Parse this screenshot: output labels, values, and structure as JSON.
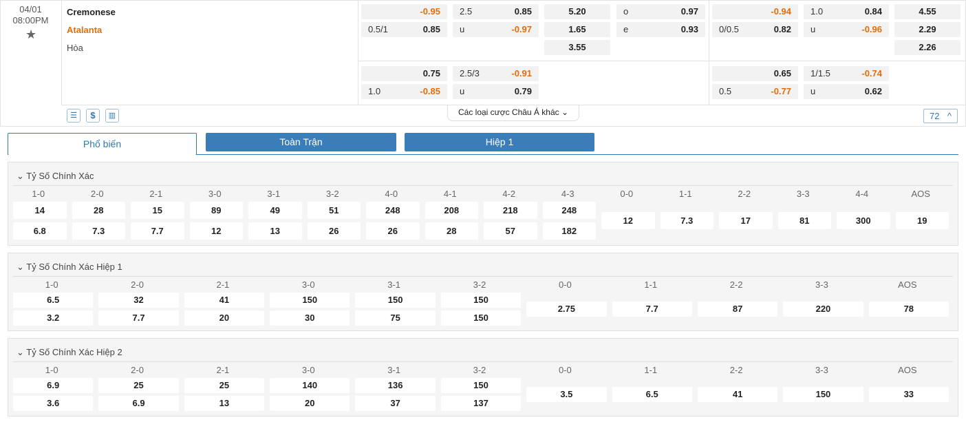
{
  "match": {
    "date": "04/01",
    "time": "08:00PM",
    "home": "Cremonese",
    "away": "Atalanta",
    "draw": "Hòa"
  },
  "odds": {
    "main": [
      [
        {
          "odds": "-0.95"
        },
        {
          "line": "2.5",
          "odds": "0.85"
        },
        {
          "odds": "5.20"
        },
        {
          "line": "o",
          "odds": "0.97"
        },
        {
          "odds": "-0.94"
        },
        {
          "line": "1.0",
          "odds": "0.84"
        },
        {
          "odds": "4.55"
        }
      ],
      [
        {
          "line": "0.5/1",
          "odds": "0.85"
        },
        {
          "line": "u",
          "odds": "-0.97"
        },
        {
          "odds": "1.65"
        },
        {
          "line": "e",
          "odds": "0.93"
        },
        {
          "line": "0/0.5",
          "odds": "0.82"
        },
        {
          "line": "u",
          "odds": "-0.96"
        },
        {
          "odds": "2.29"
        }
      ],
      [
        null,
        null,
        {
          "odds": "3.55"
        },
        null,
        null,
        null,
        {
          "odds": "2.26"
        }
      ]
    ],
    "alt": [
      [
        {
          "odds": "0.75"
        },
        {
          "line": "2.5/3",
          "odds": "-0.91"
        },
        null,
        null,
        {
          "odds": "0.65"
        },
        {
          "line": "1/1.5",
          "odds": "-0.74"
        },
        null
      ],
      [
        {
          "line": "1.0",
          "odds": "-0.85"
        },
        {
          "line": "u",
          "odds": "0.79"
        },
        null,
        null,
        {
          "line": "0.5",
          "odds": "-0.77"
        },
        {
          "line": "u",
          "odds": "0.62"
        },
        null
      ]
    ]
  },
  "toolbar": {
    "more": "Các loại cược Châu Á khác",
    "count": "72"
  },
  "tabs": [
    "Phổ biến",
    "Toàn Trận",
    "Hiệp 1"
  ],
  "sections": [
    {
      "title": "Tỷ Số Chính Xác",
      "columns": [
        "1-0",
        "2-0",
        "2-1",
        "3-0",
        "3-1",
        "3-2",
        "4-0",
        "4-1",
        "4-2",
        "4-3",
        "0-0",
        "1-1",
        "2-2",
        "3-3",
        "4-4",
        "AOS"
      ],
      "home": [
        "14",
        "28",
        "15",
        "89",
        "49",
        "51",
        "248",
        "208",
        "218",
        "248"
      ],
      "away": [
        "6.8",
        "7.3",
        "7.7",
        "12",
        "13",
        "26",
        "26",
        "28",
        "57",
        "182"
      ],
      "draw": [
        "12",
        "7.3",
        "17",
        "81",
        "300",
        "19"
      ]
    },
    {
      "title": "Tỷ Số Chính Xác Hiệp 1",
      "columns": [
        "1-0",
        "2-0",
        "2-1",
        "3-0",
        "3-1",
        "3-2",
        "0-0",
        "1-1",
        "2-2",
        "3-3",
        "AOS"
      ],
      "home": [
        "6.5",
        "32",
        "41",
        "150",
        "150",
        "150"
      ],
      "away": [
        "3.2",
        "7.7",
        "20",
        "30",
        "75",
        "150"
      ],
      "draw": [
        "2.75",
        "7.7",
        "87",
        "220",
        "78"
      ]
    },
    {
      "title": "Tỷ Số Chính Xác Hiệp 2",
      "columns": [
        "1-0",
        "2-0",
        "2-1",
        "3-0",
        "3-1",
        "3-2",
        "0-0",
        "1-1",
        "2-2",
        "3-3",
        "AOS"
      ],
      "home": [
        "6.9",
        "25",
        "25",
        "140",
        "136",
        "150"
      ],
      "away": [
        "3.6",
        "6.9",
        "13",
        "20",
        "37",
        "137"
      ],
      "draw": [
        "3.5",
        "6.5",
        "41",
        "150",
        "33"
      ]
    }
  ]
}
